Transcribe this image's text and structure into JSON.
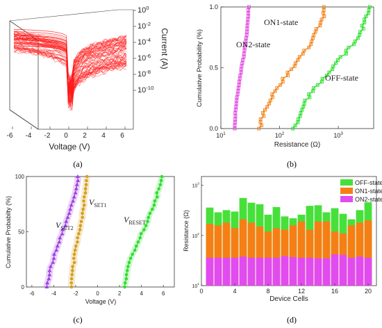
{
  "chart_data": [
    {
      "id": "a",
      "type": "line",
      "panel_label": "(a)",
      "xlabel": "Voltage (V)",
      "ylabel": "Current (A)",
      "xticks": [
        -6,
        -4,
        -2,
        0,
        2,
        4,
        6
      ],
      "xlim": [
        -6,
        6
      ],
      "yticks": [
        "10^0",
        "10^-2",
        "10^-4",
        "10^-6",
        "10^-8",
        "10^-10"
      ],
      "ylim": [
        1e-11,
        1
      ],
      "log_y": true,
      "color": "#ff1a1a",
      "description_of_marks": "many overlapping I-V sweep curves in 3D perspective"
    },
    {
      "id": "b",
      "type": "scatter",
      "panel_label": "(b)",
      "xlabel": "Resistance (Ω)",
      "ylabel": "Cumulative Probability (%)",
      "log_x": true,
      "xticks": [
        "10^1",
        "10^2",
        "10^3"
      ],
      "xlim": [
        10,
        4000
      ],
      "yticks": [
        "0.0",
        "0.5",
        "1.0"
      ],
      "ylim": [
        0,
        1
      ],
      "series": [
        {
          "name": "ON2-state",
          "color": "#e040e0",
          "x_range": [
            17,
            30
          ]
        },
        {
          "name": "ON1-state",
          "color": "#f07d10",
          "x_range": [
            45,
            600
          ]
        },
        {
          "name": "OFF-state",
          "color": "#22dd22",
          "x_range": [
            180,
            3500
          ]
        }
      ]
    },
    {
      "id": "c",
      "type": "scatter",
      "panel_label": "(c)",
      "xlabel": "Voltage (V)",
      "ylabel": "Cumulative Probabilty (%)",
      "xticks": [
        -6,
        -4,
        -2,
        0,
        2,
        4,
        6
      ],
      "xlim": [
        -6.5,
        7
      ],
      "yticks": [
        0,
        50,
        100
      ],
      "ylim": [
        0,
        100
      ],
      "annotations": [
        "V_SET2",
        "V_SET1",
        "V_RESET"
      ],
      "series": [
        {
          "name": "V_SET2",
          "color": "#a040e0",
          "x_range": [
            -4.6,
            -1.8
          ]
        },
        {
          "name": "V_SET1",
          "color": "#d4a020",
          "x_range": [
            -2.4,
            -1.0
          ]
        },
        {
          "name": "V_RESET",
          "color": "#33dd33",
          "x_range": [
            2.4,
            5.8
          ]
        }
      ]
    },
    {
      "id": "d",
      "type": "bar",
      "panel_label": "(d)",
      "xlabel": "Device Cells",
      "ylabel": "Resistance (Ω)",
      "log_y": true,
      "yticks": [
        "10^1",
        "10^2",
        "10^3"
      ],
      "ylim": [
        10,
        1500
      ],
      "xticks": [
        0,
        4,
        8,
        12,
        16,
        20
      ],
      "xlim": [
        0,
        21
      ],
      "categories": [
        1,
        2,
        3,
        4,
        5,
        6,
        7,
        8,
        9,
        10,
        11,
        12,
        13,
        14,
        15,
        16,
        17,
        18,
        19,
        20
      ],
      "series": [
        {
          "name": "ON2-state",
          "color": "#e14bef",
          "values": [
            36,
            36,
            36,
            36,
            38,
            36,
            36,
            36,
            36,
            39,
            37,
            36,
            36,
            35,
            35,
            42,
            41,
            36,
            38,
            36
          ]
        },
        {
          "name": "ON1-state",
          "color": "#f57f14",
          "values": [
            170,
            160,
            180,
            140,
            210,
            180,
            150,
            120,
            140,
            130,
            160,
            190,
            130,
            190,
            190,
            120,
            110,
            160,
            180,
            200
          ]
        },
        {
          "name": "OFF-state",
          "color": "#47e03a",
          "values": [
            360,
            290,
            320,
            300,
            560,
            450,
            420,
            260,
            370,
            240,
            220,
            260,
            390,
            400,
            290,
            350,
            270,
            210,
            320,
            460
          ]
        }
      ],
      "legend_position": "top-right"
    }
  ]
}
